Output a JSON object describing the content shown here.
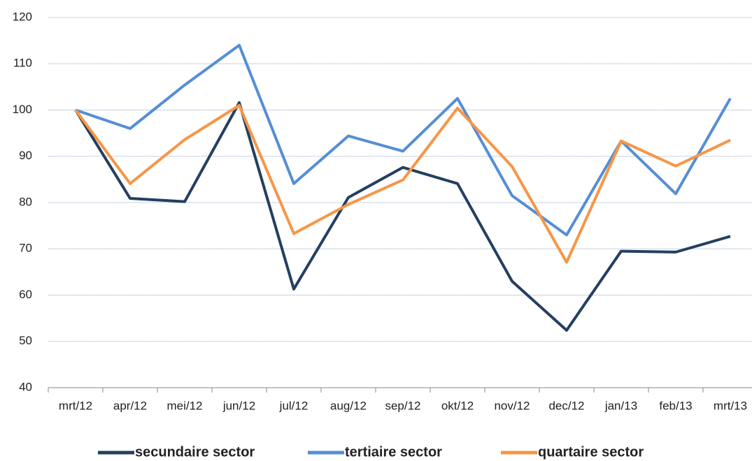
{
  "chart_data": {
    "type": "line",
    "categories": [
      "mrt/12",
      "apr/12",
      "mei/12",
      "jun/12",
      "jul/12",
      "aug/12",
      "sep/12",
      "okt/12",
      "nov/12",
      "dec/12",
      "jan/13",
      "feb/13",
      "mrt/13"
    ],
    "series": [
      {
        "name": "secundaire sector",
        "color": "#243f60",
        "values": [
          100,
          80.9,
          80.2,
          101.6,
          61.3,
          81.1,
          87.6,
          84.1,
          63.0,
          52.4,
          69.5,
          69.3,
          72.7
        ]
      },
      {
        "name": "tertiaire sector",
        "color": "#558ed5",
        "values": [
          100,
          96.0,
          105.4,
          114.0,
          84.1,
          94.4,
          91.1,
          102.5,
          81.5,
          73.0,
          93.3,
          81.9,
          102.5
        ]
      },
      {
        "name": "quartaire sector",
        "color": "#f79646",
        "values": [
          100,
          84.1,
          93.6,
          101.0,
          73.3,
          79.6,
          84.9,
          100.4,
          87.8,
          67.1,
          93.3,
          87.9,
          93.5
        ]
      }
    ],
    "ylim": [
      40,
      120
    ],
    "yticks": [
      40,
      50,
      60,
      70,
      80,
      90,
      100,
      110,
      120
    ],
    "grid": true,
    "legend": "bottom"
  }
}
